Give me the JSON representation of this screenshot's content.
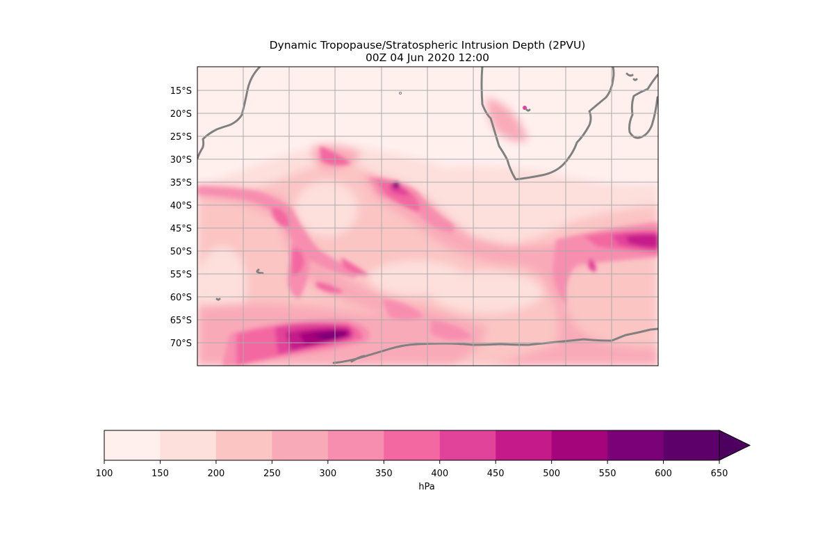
{
  "title_line1": "Dynamic Tropopause/Stratospheric Intrusion Depth (2PVU)",
  "title_line2": "00Z 04 Jun 2020 12:00",
  "lat_labels": [
    "15°S",
    "20°S",
    "25°S",
    "30°S",
    "35°S",
    "40°S",
    "45°S",
    "50°S",
    "55°S",
    "60°S",
    "65°S",
    "70°S"
  ],
  "colorbar": {
    "unit_label": "hPa",
    "levels": [
      100,
      150,
      200,
      250,
      300,
      350,
      400,
      450,
      500,
      550,
      600,
      650
    ],
    "colors": [
      "#fff0ee",
      "#fddfdc",
      "#fbc5c4",
      "#f9aab8",
      "#f78eb0",
      "#f368a0",
      "#e2439a",
      "#c51b8a",
      "#a4057b",
      "#7a0177",
      "#5e006a",
      "#4d0060"
    ],
    "extend": "max"
  },
  "map_colors": {
    "coastline": "#808080",
    "gridlines": "#aaaaaa"
  }
}
